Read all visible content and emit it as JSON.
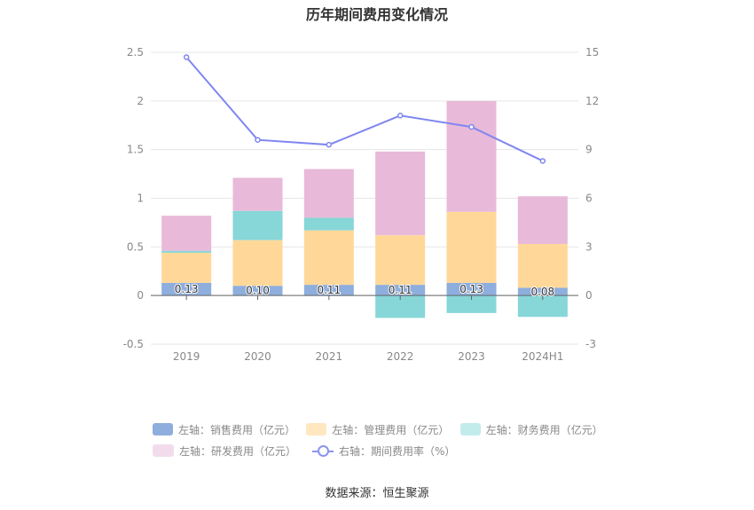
{
  "chart_data": {
    "type": "bar",
    "title": "历年期间费用变化情况",
    "categories": [
      "2019",
      "2020",
      "2021",
      "2022",
      "2023",
      "2024H1"
    ],
    "y_left": {
      "ticks": [
        "-0.5",
        "0",
        "0.5",
        "1",
        "1.5",
        "2",
        "2.5"
      ],
      "ylim": [
        -0.5,
        2.5
      ]
    },
    "y_right": {
      "ticks": [
        "-3",
        "0",
        "3",
        "6",
        "9",
        "12",
        "15"
      ],
      "ylim": [
        -3,
        15
      ]
    },
    "series": [
      {
        "name": "左轴：销售费用（亿元）",
        "axis": "left",
        "stack": true,
        "color": "#8eaedd",
        "values": [
          0.13,
          0.1,
          0.11,
          0.11,
          0.13,
          0.08
        ],
        "labels": [
          "0.13",
          "0.10",
          "0.11",
          "0.11",
          "0.13",
          "0.08"
        ]
      },
      {
        "name": "左轴：管理费用（亿元）",
        "axis": "left",
        "stack": true,
        "color": "#ffd899",
        "values": [
          0.31,
          0.47,
          0.56,
          0.51,
          0.73,
          0.45
        ]
      },
      {
        "name": "左轴：财务费用（亿元）",
        "axis": "left",
        "stack": true,
        "color": "#87d6d8",
        "values": [
          0.02,
          0.3,
          0.13,
          -0.23,
          -0.18,
          -0.22
        ]
      },
      {
        "name": "左轴：研发费用（亿元）",
        "axis": "left",
        "stack": true,
        "color": "#e8b9d8",
        "values": [
          0.36,
          0.34,
          0.5,
          0.86,
          1.14,
          0.49
        ]
      },
      {
        "name": "右轴：期间费用率（%）",
        "axis": "right",
        "type": "line",
        "color": "#7f86f0",
        "values": [
          14.7,
          9.6,
          9.3,
          11.1,
          10.4,
          8.3
        ]
      }
    ],
    "legend_position": "bottom",
    "grid": true
  },
  "legend": [
    {
      "label": "左轴：销售费用（亿元）",
      "color": "#8eaedd",
      "kind": "bar"
    },
    {
      "label": "左轴：管理费用（亿元）",
      "color": "#ffe7c0",
      "kind": "bar"
    },
    {
      "label": "左轴：财务费用（亿元）",
      "color": "#c2ecec",
      "kind": "bar"
    },
    {
      "label": "左轴：研发费用（亿元）",
      "color": "#f2dcec",
      "kind": "bar"
    },
    {
      "label": "右轴：期间费用率（%）",
      "color": "#8b94ee",
      "kind": "line"
    }
  ],
  "source": "数据来源：恒生聚源"
}
